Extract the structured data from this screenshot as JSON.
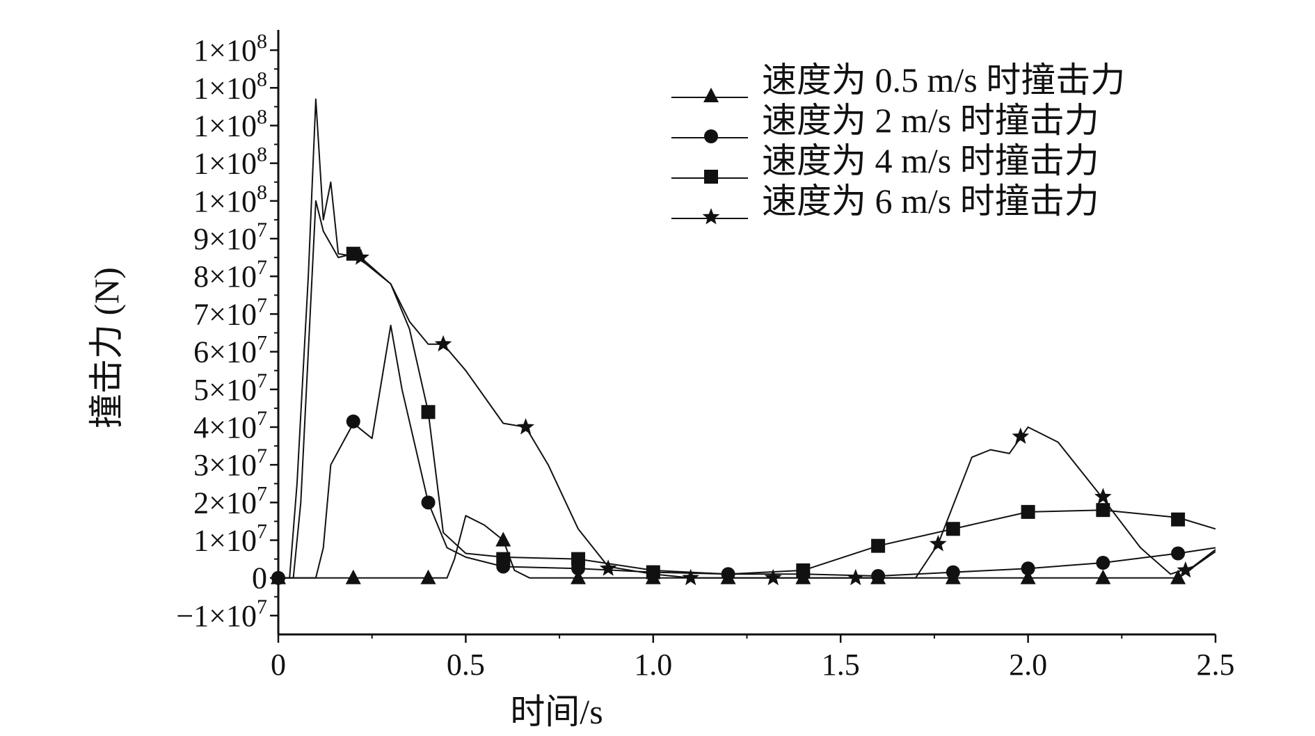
{
  "chart_data": {
    "type": "line",
    "title": "",
    "xlabel": "时间/s",
    "ylabel": "撞击力 (N)",
    "xlim": [
      0,
      2.5
    ],
    "ylim": [
      -15000000,
      145000000
    ],
    "x_ticks": [
      {
        "value": 0,
        "label": "0"
      },
      {
        "value": 0.5,
        "label": "0.5"
      },
      {
        "value": 1.0,
        "label": "1.0"
      },
      {
        "value": 1.5,
        "label": "1.5"
      },
      {
        "value": 2.0,
        "label": "2.0"
      },
      {
        "value": 2.5,
        "label": "2.5"
      }
    ],
    "y_ticks": [
      {
        "value": -10000000,
        "mantissa": "−1×10",
        "exp": "7"
      },
      {
        "value": 0,
        "mantissa": "0",
        "exp": ""
      },
      {
        "value": 10000000,
        "mantissa": "1×10",
        "exp": "7"
      },
      {
        "value": 20000000,
        "mantissa": "2×10",
        "exp": "7"
      },
      {
        "value": 30000000,
        "mantissa": "3×10",
        "exp": "7"
      },
      {
        "value": 40000000,
        "mantissa": "4×10",
        "exp": "7"
      },
      {
        "value": 50000000,
        "mantissa": "5×10",
        "exp": "7"
      },
      {
        "value": 60000000,
        "mantissa": "6×10",
        "exp": "7"
      },
      {
        "value": 70000000,
        "mantissa": "7×10",
        "exp": "7"
      },
      {
        "value": 80000000,
        "mantissa": "8×10",
        "exp": "7"
      },
      {
        "value": 90000000,
        "mantissa": "9×10",
        "exp": "7"
      },
      {
        "value": 100000000,
        "mantissa": "1×10",
        "exp": "8"
      },
      {
        "value": 110000000,
        "mantissa": "1×10",
        "exp": "8"
      },
      {
        "value": 120000000,
        "mantissa": "1×10",
        "exp": "8"
      },
      {
        "value": 130000000,
        "mantissa": "1×10",
        "exp": "8"
      },
      {
        "value": 140000000,
        "mantissa": "1×10",
        "exp": "8"
      }
    ],
    "grid": false,
    "legend_position": "top-right",
    "colors": {
      "line": "#111111",
      "background": "#ffffff"
    },
    "series": [
      {
        "name": "速度为 0.5 m/s 时撞击力",
        "marker": "triangle",
        "line": [
          [
            0,
            0
          ],
          [
            0.1,
            0
          ],
          [
            0.2,
            0
          ],
          [
            0.3,
            0
          ],
          [
            0.4,
            0
          ],
          [
            0.45,
            0
          ],
          [
            0.47,
            5000000
          ],
          [
            0.5,
            16500000
          ],
          [
            0.55,
            14000000
          ],
          [
            0.6,
            10000000
          ],
          [
            0.63,
            2000000
          ],
          [
            0.67,
            0
          ],
          [
            0.8,
            0
          ],
          [
            1.0,
            0
          ],
          [
            1.2,
            0
          ],
          [
            1.4,
            0
          ],
          [
            1.6,
            0
          ],
          [
            1.8,
            0
          ],
          [
            2.0,
            0
          ],
          [
            2.2,
            0
          ],
          [
            2.4,
            0
          ],
          [
            2.5,
            7000000
          ]
        ],
        "markers": [
          [
            0,
            0
          ],
          [
            0.2,
            0
          ],
          [
            0.4,
            0
          ],
          [
            0.6,
            10000000
          ],
          [
            0.8,
            0
          ],
          [
            1.0,
            0
          ],
          [
            1.2,
            0
          ],
          [
            1.4,
            0
          ],
          [
            1.6,
            0
          ],
          [
            1.8,
            0
          ],
          [
            2.0,
            0
          ],
          [
            2.2,
            0
          ],
          [
            2.4,
            0
          ]
        ]
      },
      {
        "name": "速度为 2 m/s 时撞击力",
        "marker": "circle",
        "line": [
          [
            0,
            0
          ],
          [
            0.1,
            0
          ],
          [
            0.12,
            8000000
          ],
          [
            0.14,
            30000000
          ],
          [
            0.2,
            41000000
          ],
          [
            0.25,
            37000000
          ],
          [
            0.3,
            67000000
          ],
          [
            0.33,
            50000000
          ],
          [
            0.4,
            20000000
          ],
          [
            0.45,
            8000000
          ],
          [
            0.5,
            5500000
          ],
          [
            0.6,
            3000000
          ],
          [
            0.8,
            2500000
          ],
          [
            1.0,
            1500000
          ],
          [
            1.2,
            1000000
          ],
          [
            1.4,
            1000000
          ],
          [
            1.6,
            500000
          ],
          [
            1.8,
            1500000
          ],
          [
            2.0,
            2500000
          ],
          [
            2.2,
            4000000
          ],
          [
            2.4,
            6500000
          ],
          [
            2.5,
            8000000
          ]
        ],
        "markers": [
          [
            0,
            0
          ],
          [
            0.2,
            41500000
          ],
          [
            0.4,
            20000000
          ],
          [
            0.6,
            3000000
          ],
          [
            0.8,
            2500000
          ],
          [
            1.0,
            1500000
          ],
          [
            1.2,
            1000000
          ],
          [
            1.4,
            1000000
          ],
          [
            1.6,
            500000
          ],
          [
            1.8,
            1500000
          ],
          [
            2.0,
            2500000
          ],
          [
            2.2,
            4000000
          ],
          [
            2.4,
            6500000
          ]
        ]
      },
      {
        "name": "速度为 4 m/s 时撞击力",
        "marker": "square",
        "line": [
          [
            0,
            0
          ],
          [
            0.04,
            0
          ],
          [
            0.06,
            20000000
          ],
          [
            0.08,
            60000000
          ],
          [
            0.1,
            100000000
          ],
          [
            0.12,
            92000000
          ],
          [
            0.16,
            85000000
          ],
          [
            0.2,
            86000000
          ],
          [
            0.25,
            82000000
          ],
          [
            0.3,
            78000000
          ],
          [
            0.35,
            66000000
          ],
          [
            0.4,
            44000000
          ],
          [
            0.44,
            12000000
          ],
          [
            0.5,
            6500000
          ],
          [
            0.6,
            5500000
          ],
          [
            0.8,
            5000000
          ],
          [
            1.0,
            2000000
          ],
          [
            1.2,
            1000000
          ],
          [
            1.4,
            2000000
          ],
          [
            1.6,
            8500000
          ],
          [
            1.8,
            13000000
          ],
          [
            2.0,
            17500000
          ],
          [
            2.2,
            18000000
          ],
          [
            2.4,
            16000000
          ],
          [
            2.5,
            13000000
          ]
        ],
        "markers": [
          [
            0.2,
            86000000
          ],
          [
            0.4,
            44000000
          ],
          [
            0.6,
            5000000
          ],
          [
            0.8,
            5000000
          ],
          [
            1.0,
            1500000
          ],
          [
            1.4,
            2000000
          ],
          [
            1.6,
            8500000
          ],
          [
            1.8,
            13000000
          ],
          [
            2.0,
            17500000
          ],
          [
            2.2,
            18000000
          ],
          [
            2.4,
            15500000
          ]
        ]
      },
      {
        "name": "速度为 6 m/s 时撞击力",
        "marker": "star",
        "line": [
          [
            0,
            0
          ],
          [
            0.03,
            0
          ],
          [
            0.05,
            25000000
          ],
          [
            0.08,
            80000000
          ],
          [
            0.1,
            127000000
          ],
          [
            0.12,
            95000000
          ],
          [
            0.14,
            105000000
          ],
          [
            0.16,
            86000000
          ],
          [
            0.22,
            85000000
          ],
          [
            0.3,
            78000000
          ],
          [
            0.35,
            68000000
          ],
          [
            0.4,
            62000000
          ],
          [
            0.44,
            62000000
          ],
          [
            0.5,
            55000000
          ],
          [
            0.6,
            41000000
          ],
          [
            0.66,
            40000000
          ],
          [
            0.72,
            30000000
          ],
          [
            0.8,
            13000000
          ],
          [
            0.88,
            3000000
          ],
          [
            1.0,
            1000000
          ],
          [
            1.1,
            0
          ],
          [
            1.32,
            0
          ],
          [
            1.54,
            0
          ],
          [
            1.7,
            0
          ],
          [
            1.76,
            9000000
          ],
          [
            1.85,
            32000000
          ],
          [
            1.9,
            34000000
          ],
          [
            1.95,
            33000000
          ],
          [
            2.0,
            40000000
          ],
          [
            2.08,
            36000000
          ],
          [
            2.2,
            21000000
          ],
          [
            2.3,
            8000000
          ],
          [
            2.38,
            1000000
          ],
          [
            2.44,
            3000000
          ],
          [
            2.5,
            7500000
          ]
        ],
        "markers": [
          [
            0.22,
            85000000
          ],
          [
            0.44,
            62000000
          ],
          [
            0.66,
            40000000
          ],
          [
            0.88,
            2500000
          ],
          [
            1.1,
            0
          ],
          [
            1.32,
            0
          ],
          [
            1.54,
            0
          ],
          [
            1.76,
            9000000
          ],
          [
            1.98,
            37500000
          ],
          [
            2.2,
            21500000
          ],
          [
            2.42,
            2000000
          ]
        ]
      }
    ]
  }
}
